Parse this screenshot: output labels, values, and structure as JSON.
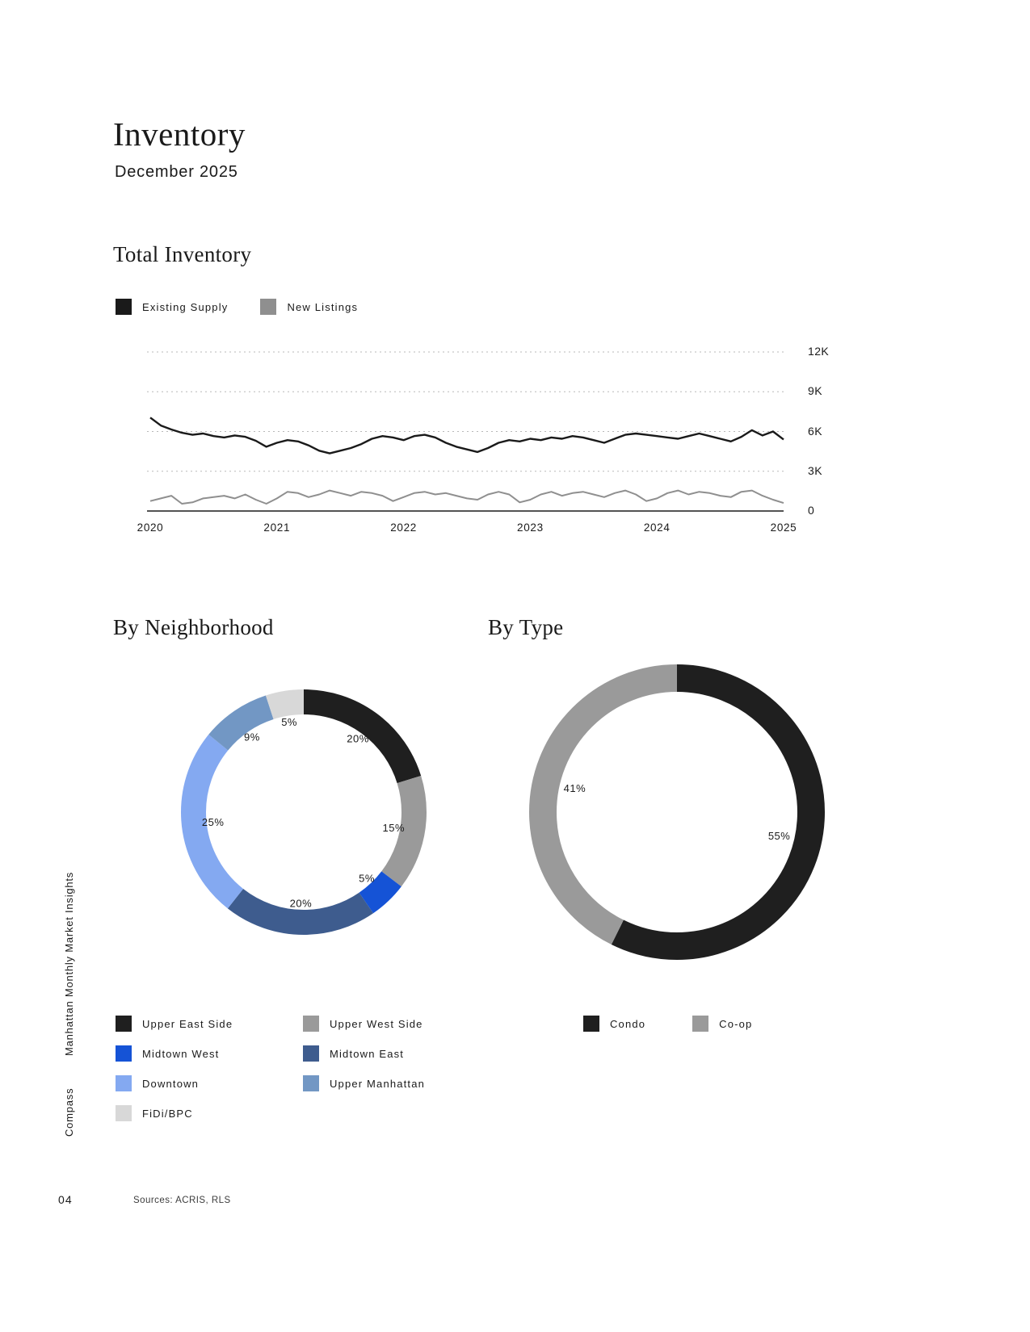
{
  "page": {
    "title": "Inventory",
    "subtitle": "December 2025",
    "sidebar_title": "Manhattan Monthly Market Insights",
    "sidebar_brand": "Compass",
    "footer_page": "04",
    "footer_sources": "Sources: ACRIS, RLS"
  },
  "colors": {
    "ink": "#1a1a1a",
    "gray_series": "#8f8f8f",
    "gridline": "#b8b8b8"
  },
  "chart_data": [
    {
      "type": "line",
      "title": "Total Inventory",
      "x_tick_labels": [
        "2020",
        "2021",
        "2022",
        "2023",
        "2024",
        "2025"
      ],
      "y_ticks": [
        {
          "label": "12K",
          "value": 12000
        },
        {
          "label": "9K",
          "value": 9000
        },
        {
          "label": "6K",
          "value": 6000
        },
        {
          "label": "3K",
          "value": 3000
        },
        {
          "label": "0",
          "value": 0
        }
      ],
      "ylim": [
        0,
        12000
      ],
      "grid": "dashed horizontal",
      "legend_position": "top-left",
      "legend": [
        {
          "label": "Existing Supply",
          "color": "#1a1a1a"
        },
        {
          "label": "New Listings",
          "color": "#8f8f8f"
        }
      ],
      "series": [
        {
          "name": "Existing Supply",
          "color": "#1a1a1a",
          "values": [
            7050,
            6450,
            6150,
            5900,
            5750,
            5850,
            5650,
            5550,
            5700,
            5600,
            5300,
            4850,
            5150,
            5350,
            5250,
            4950,
            4550,
            4350,
            4550,
            4750,
            5050,
            5450,
            5650,
            5550,
            5350,
            5650,
            5750,
            5550,
            5150,
            4850,
            4650,
            4450,
            4750,
            5150,
            5350,
            5250,
            5450,
            5350,
            5550,
            5450,
            5650,
            5550,
            5350,
            5150,
            5450,
            5750,
            5850,
            5750,
            5650,
            5550,
            5450,
            5650,
            5850,
            5650,
            5450,
            5250,
            5600,
            6100,
            5700,
            6000,
            5400
          ]
        },
        {
          "name": "New Listings",
          "color": "#8f8f8f",
          "values": [
            750,
            950,
            1150,
            550,
            650,
            950,
            1050,
            1150,
            950,
            1250,
            850,
            550,
            950,
            1450,
            1350,
            1050,
            1250,
            1550,
            1350,
            1150,
            1450,
            1350,
            1150,
            750,
            1050,
            1350,
            1450,
            1250,
            1350,
            1150,
            950,
            850,
            1250,
            1450,
            1250,
            650,
            850,
            1250,
            1450,
            1150,
            1350,
            1450,
            1250,
            1050,
            1350,
            1550,
            1250,
            750,
            950,
            1350,
            1550,
            1250,
            1450,
            1350,
            1150,
            1050,
            1450,
            1550,
            1150,
            850,
            600
          ]
        }
      ]
    },
    {
      "type": "pie",
      "title": "By Neighborhood",
      "shape": "donut",
      "start": "top, clockwise",
      "segments": [
        {
          "label": "Upper East Side",
          "value": 20,
          "color": "#1f1f1f"
        },
        {
          "label": "Upper West Side",
          "value": 15,
          "color": "#9a9a9a"
        },
        {
          "label": "Midtown West",
          "value": 5,
          "color": "#1553d6"
        },
        {
          "label": "Midtown East",
          "value": 20,
          "color": "#3e5c8e"
        },
        {
          "label": "Downtown",
          "value": 25,
          "color": "#84a9f1"
        },
        {
          "label": "Upper Manhattan",
          "value": 9,
          "color": "#7297c4"
        },
        {
          "label": "FiDi/BPC",
          "value": 5,
          "color": "#d8d8d8"
        }
      ]
    },
    {
      "type": "pie",
      "title": "By Type",
      "shape": "donut",
      "start": "top, clockwise",
      "segments": [
        {
          "label": "Condo",
          "value": 55,
          "color": "#1f1f1f"
        },
        {
          "label": "Co-op",
          "value": 41,
          "color": "#9a9a9a"
        }
      ]
    }
  ]
}
